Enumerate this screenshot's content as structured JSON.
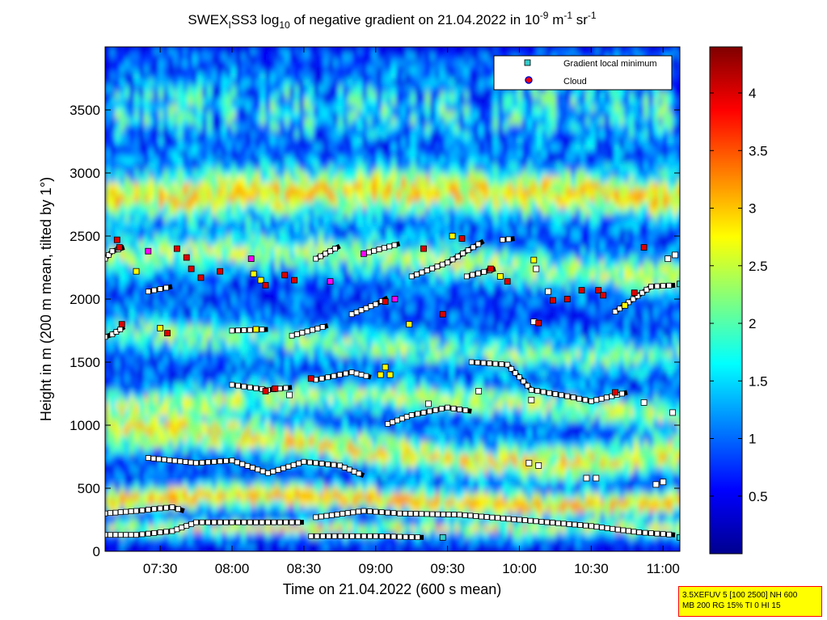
{
  "chart_data": {
    "type": "heatmap",
    "title": {
      "prefix": "SWEX",
      "sub1": "I",
      "mid1": "SS3 log",
      "sub2": "10",
      "mid2": " of negative gradient on 21.04.2022 in 10",
      "sup1": "-9",
      "mid3": " m",
      "sup2": "-1",
      "mid4": " sr",
      "sup3": "-1"
    },
    "xlabel": "Time on 21.04.2022 (600 s mean)",
    "ylabel": "Height in m (200 m mean, tilted by 1°)",
    "xlim": [
      "07:07",
      "11:07"
    ],
    "ylim": [
      0,
      4000
    ],
    "x_ticks": [
      "07:30",
      "08:00",
      "08:30",
      "09:00",
      "09:30",
      "10:00",
      "10:30",
      "11:00"
    ],
    "y_ticks": [
      0,
      500,
      1000,
      1500,
      2000,
      2500,
      3000,
      3500
    ],
    "colorbar": {
      "colormap": "jet",
      "range": [
        0,
        4.4
      ],
      "ticks": [
        0.5,
        1,
        1.5,
        2,
        2.5,
        3,
        3.5,
        4
      ]
    },
    "legend": {
      "position": "top-right",
      "entries": [
        {
          "label": "Gradient local minimum",
          "marker": "square",
          "color": "#33cccc"
        },
        {
          "label": "Cloud",
          "marker": "circle",
          "color": "#ff0000",
          "edge": "#0000cc"
        }
      ]
    },
    "series": [
      {
        "kind": "gradient-minimum",
        "color": "#000000",
        "points": [
          [
            "07:07",
            130
          ],
          [
            "07:20",
            130
          ],
          [
            "07:35",
            160
          ],
          [
            "07:45",
            230
          ],
          [
            "08:00",
            230
          ],
          [
            "08:15",
            230
          ],
          [
            "08:30",
            230
          ]
        ]
      },
      {
        "kind": "gradient-minimum",
        "color": "#000000",
        "points": [
          [
            "07:07",
            300
          ],
          [
            "07:20",
            320
          ],
          [
            "07:35",
            350
          ],
          [
            "07:40",
            320
          ]
        ]
      },
      {
        "kind": "gradient-minimum",
        "color": "#000000",
        "points": [
          [
            "08:33",
            120
          ],
          [
            "09:00",
            120
          ],
          [
            "09:20",
            110
          ]
        ]
      },
      {
        "kind": "gradient-minimum",
        "color": "#000000",
        "points": [
          [
            "08:35",
            270
          ],
          [
            "08:55",
            320
          ],
          [
            "09:10",
            300
          ],
          [
            "09:35",
            290
          ],
          [
            "10:00",
            250
          ],
          [
            "10:30",
            200
          ],
          [
            "10:50",
            150
          ],
          [
            "11:05",
            130
          ]
        ]
      },
      {
        "kind": "gradient-minimum",
        "color": "#000000",
        "points": [
          [
            "07:25",
            740
          ],
          [
            "07:45",
            700
          ],
          [
            "08:00",
            720
          ],
          [
            "08:15",
            620
          ],
          [
            "08:30",
            710
          ],
          [
            "08:45",
            680
          ],
          [
            "08:55",
            600
          ]
        ]
      },
      {
        "kind": "gradient-minimum",
        "color": "#000000",
        "points": [
          [
            "08:00",
            1320
          ],
          [
            "08:15",
            1280
          ],
          [
            "08:25",
            1300
          ]
        ]
      },
      {
        "kind": "gradient-minimum",
        "color": "#000000",
        "points": [
          [
            "08:35",
            1360
          ],
          [
            "08:50",
            1420
          ],
          [
            "08:58",
            1380
          ]
        ]
      },
      {
        "kind": "gradient-minimum",
        "color": "#000000",
        "points": [
          [
            "09:05",
            1010
          ],
          [
            "09:15",
            1080
          ],
          [
            "09:30",
            1140
          ],
          [
            "09:40",
            1110
          ]
        ]
      },
      {
        "kind": "gradient-minimum",
        "color": "#000000",
        "points": [
          [
            "09:40",
            1500
          ],
          [
            "09:55",
            1480
          ],
          [
            "10:05",
            1280
          ],
          [
            "10:20",
            1230
          ],
          [
            "10:30",
            1190
          ],
          [
            "10:45",
            1260
          ]
        ]
      },
      {
        "kind": "gradient-minimum",
        "color": "#000000",
        "points": [
          [
            "07:07",
            1700
          ],
          [
            "07:10",
            1720
          ],
          [
            "07:15",
            1780
          ]
        ]
      },
      {
        "kind": "gradient-minimum",
        "color": "#000000",
        "points": [
          [
            "08:00",
            1750
          ],
          [
            "08:15",
            1760
          ]
        ]
      },
      {
        "kind": "gradient-minimum",
        "color": "#000000",
        "points": [
          [
            "08:25",
            1710
          ],
          [
            "08:40",
            1790
          ]
        ]
      },
      {
        "kind": "gradient-minimum",
        "color": "#000000",
        "points": [
          [
            "07:25",
            2060
          ],
          [
            "07:35",
            2100
          ]
        ]
      },
      {
        "kind": "gradient-minimum",
        "color": "#000000",
        "points": [
          [
            "08:50",
            1880
          ],
          [
            "09:00",
            1960
          ],
          [
            "09:05",
            2010
          ]
        ]
      },
      {
        "kind": "gradient-minimum",
        "color": "#000000",
        "points": [
          [
            "09:15",
            2180
          ],
          [
            "09:30",
            2290
          ],
          [
            "09:45",
            2460
          ]
        ]
      },
      {
        "kind": "gradient-minimum",
        "color": "#000000",
        "points": [
          [
            "09:38",
            2180
          ],
          [
            "09:50",
            2240
          ]
        ]
      },
      {
        "kind": "gradient-minimum",
        "color": "#000000",
        "points": [
          [
            "08:35",
            2320
          ],
          [
            "08:45",
            2420
          ]
        ]
      },
      {
        "kind": "gradient-minimum",
        "color": "#000000",
        "points": [
          [
            "08:55",
            2360
          ],
          [
            "09:10",
            2440
          ]
        ]
      },
      {
        "kind": "gradient-minimum",
        "color": "#000000",
        "points": [
          [
            "07:07",
            2320
          ],
          [
            "07:10",
            2380
          ],
          [
            "07:15",
            2410
          ]
        ]
      },
      {
        "kind": "gradient-minimum",
        "color": "#000000",
        "points": [
          [
            "09:53",
            2470
          ],
          [
            "09:58",
            2480
          ]
        ]
      },
      {
        "kind": "gradient-minimum",
        "color": "#000000",
        "points": [
          [
            "10:40",
            1900
          ],
          [
            "10:55",
            2100
          ],
          [
            "11:05",
            2110
          ]
        ]
      }
    ],
    "points": [
      {
        "t": "07:12",
        "h": 2470,
        "c": "cloud"
      },
      {
        "t": "07:13",
        "h": 2410,
        "c": "cloud"
      },
      {
        "t": "07:14",
        "h": 1800,
        "c": "cloud"
      },
      {
        "t": "07:20",
        "h": 2220,
        "c": "yellow"
      },
      {
        "t": "07:25",
        "h": 2380,
        "c": "magenta"
      },
      {
        "t": "07:30",
        "h": 1770,
        "c": "yellow"
      },
      {
        "t": "07:33",
        "h": 1730,
        "c": "cloud"
      },
      {
        "t": "07:37",
        "h": 2400,
        "c": "cloud"
      },
      {
        "t": "07:41",
        "h": 2330,
        "c": "cloud"
      },
      {
        "t": "07:43",
        "h": 2240,
        "c": "cloud"
      },
      {
        "t": "07:47",
        "h": 2170,
        "c": "cloud"
      },
      {
        "t": "07:55",
        "h": 2220,
        "c": "cloud"
      },
      {
        "t": "08:08",
        "h": 2320,
        "c": "magenta"
      },
      {
        "t": "08:09",
        "h": 2200,
        "c": "yellow"
      },
      {
        "t": "08:12",
        "h": 2150,
        "c": "yellow"
      },
      {
        "t": "08:14",
        "h": 2110,
        "c": "cloud"
      },
      {
        "t": "08:22",
        "h": 2190,
        "c": "cloud"
      },
      {
        "t": "08:26",
        "h": 2150,
        "c": "cloud"
      },
      {
        "t": "08:10",
        "h": 1760,
        "c": "yellow"
      },
      {
        "t": "08:18",
        "h": 1290,
        "c": "cloud"
      },
      {
        "t": "08:14",
        "h": 1270,
        "c": "cloud"
      },
      {
        "t": "08:24",
        "h": 1240,
        "c": "white"
      },
      {
        "t": "08:33",
        "h": 1370,
        "c": "cloud"
      },
      {
        "t": "08:41",
        "h": 2140,
        "c": "magenta"
      },
      {
        "t": "08:55",
        "h": 2360,
        "c": "magenta"
      },
      {
        "t": "09:02",
        "h": 1400,
        "c": "yellow"
      },
      {
        "t": "09:06",
        "h": 1400,
        "c": "yellow"
      },
      {
        "t": "09:04",
        "h": 1460,
        "c": "yellow"
      },
      {
        "t": "09:08",
        "h": 2000,
        "c": "magenta"
      },
      {
        "t": "09:04",
        "h": 1980,
        "c": "cloud"
      },
      {
        "t": "09:14",
        "h": 1800,
        "c": "yellow"
      },
      {
        "t": "09:20",
        "h": 2400,
        "c": "cloud"
      },
      {
        "t": "09:28",
        "h": 1880,
        "c": "cloud"
      },
      {
        "t": "09:32",
        "h": 2500,
        "c": "yellow"
      },
      {
        "t": "09:36",
        "h": 2480,
        "c": "cloud"
      },
      {
        "t": "09:48",
        "h": 2240,
        "c": "cloud"
      },
      {
        "t": "09:52",
        "h": 2180,
        "c": "yellow"
      },
      {
        "t": "09:55",
        "h": 2140,
        "c": "cloud"
      },
      {
        "t": "10:07",
        "h": 2240,
        "c": "white"
      },
      {
        "t": "10:06",
        "h": 2310,
        "c": "yellow"
      },
      {
        "t": "10:12",
        "h": 2060,
        "c": "white"
      },
      {
        "t": "10:14",
        "h": 1990,
        "c": "cloud"
      },
      {
        "t": "10:20",
        "h": 2000,
        "c": "cloud"
      },
      {
        "t": "10:26",
        "h": 2070,
        "c": "cloud"
      },
      {
        "t": "10:33",
        "h": 2070,
        "c": "cloud"
      },
      {
        "t": "10:35",
        "h": 2030,
        "c": "cloud"
      },
      {
        "t": "10:44",
        "h": 1950,
        "c": "yellow"
      },
      {
        "t": "10:48",
        "h": 2050,
        "c": "cloud"
      },
      {
        "t": "10:52",
        "h": 2410,
        "c": "cloud"
      },
      {
        "t": "10:06",
        "h": 1820,
        "c": "white"
      },
      {
        "t": "10:08",
        "h": 1810,
        "c": "cloud"
      },
      {
        "t": "10:04",
        "h": 700,
        "c": "white"
      },
      {
        "t": "10:08",
        "h": 680,
        "c": "white"
      },
      {
        "t": "10:28",
        "h": 580,
        "c": "white"
      },
      {
        "t": "10:32",
        "h": 580,
        "c": "white"
      },
      {
        "t": "10:40",
        "h": 1260,
        "c": "cloud"
      },
      {
        "t": "10:52",
        "h": 1180,
        "c": "white"
      },
      {
        "t": "10:57",
        "h": 530,
        "c": "white"
      },
      {
        "t": "11:00",
        "h": 550,
        "c": "white"
      },
      {
        "t": "11:04",
        "h": 1100,
        "c": "white"
      },
      {
        "t": "11:02",
        "h": 2320,
        "c": "white"
      },
      {
        "t": "11:05",
        "h": 2350,
        "c": "white"
      },
      {
        "t": "11:07",
        "h": 2120,
        "c": "cyan"
      },
      {
        "t": "10:05",
        "h": 1200,
        "c": "white"
      },
      {
        "t": "09:43",
        "h": 1270,
        "c": "white"
      },
      {
        "t": "09:22",
        "h": 1170,
        "c": "white"
      },
      {
        "t": "11:07",
        "h": 110,
        "c": "cyan"
      },
      {
        "t": "09:28",
        "h": 110,
        "c": "cyan"
      }
    ]
  },
  "info_box": {
    "line1": "3.5XEFUV 5 [100 2500] NH 600",
    "line2": "MB 200 RG 15% TI 0 HI 15"
  }
}
